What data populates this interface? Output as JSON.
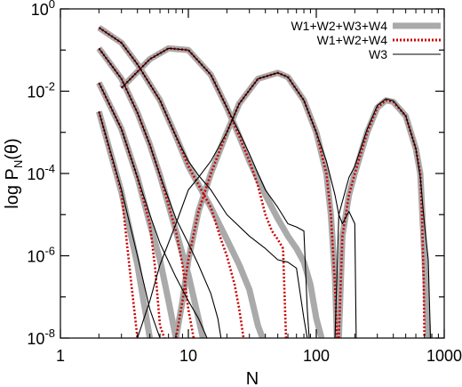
{
  "chart_data": {
    "type": "line",
    "xlabel": "N",
    "ylabel": "log P",
    "ylabel_sub": "N",
    "ylabel_arg": "(θ)",
    "x_scale": "log",
    "y_scale": "log",
    "xlim": [
      1,
      1000
    ],
    "ylim": [
      1e-08,
      1
    ],
    "x_ticks": [
      {
        "value": 1,
        "label": "1"
      },
      {
        "value": 10,
        "label": "10"
      },
      {
        "value": 100,
        "label": "100"
      },
      {
        "value": 1000,
        "label": "1000"
      }
    ],
    "y_ticks": [
      {
        "value": 1,
        "base": "10",
        "exp": "0"
      },
      {
        "value": 0.01,
        "base": "10",
        "exp": "-2"
      },
      {
        "value": 0.0001,
        "base": "10",
        "exp": "-4"
      },
      {
        "value": 1e-06,
        "base": "10",
        "exp": "-6"
      },
      {
        "value": 1e-08,
        "base": "10",
        "exp": "-8"
      }
    ],
    "grid": false,
    "legend_position": "top-right",
    "series": [
      {
        "name": "W1+W2+W3+W4",
        "color": "#aaaaaa",
        "style": "thick-solid",
        "curves": [
          [
            [
              2,
              0.35
            ],
            [
              3,
              0.15
            ],
            [
              4,
              0.045
            ],
            [
              6,
              0.006
            ],
            [
              8,
              0.0008
            ],
            [
              10,
              0.00015
            ],
            [
              15,
              1.5e-05
            ],
            [
              20,
              2.5e-06
            ],
            [
              25,
              6e-07
            ],
            [
              30,
              1.5e-07
            ],
            [
              35,
              2e-08
            ],
            [
              38,
              1e-08
            ]
          ],
          [
            [
              2,
              0.11
            ],
            [
              3,
              0.02
            ],
            [
              4,
              0.003
            ],
            [
              5,
              0.0005
            ],
            [
              6,
              9e-05
            ],
            [
              8,
              4e-06
            ],
            [
              10,
              3.5e-07
            ],
            [
              12,
              3e-08
            ],
            [
              13,
              1e-08
            ]
          ],
          [
            [
              2,
              0.016
            ],
            [
              3,
              0.0012
            ],
            [
              4,
              8e-05
            ],
            [
              5,
              6e-06
            ],
            [
              6,
              8e-07
            ],
            [
              7,
              8e-08
            ],
            [
              8,
              1e-08
            ]
          ],
          [
            [
              2,
              0.0032
            ],
            [
              3,
              3.5e-05
            ],
            [
              4,
              6e-07
            ],
            [
              5,
              1e-08
            ]
          ],
          [
            [
              3,
              0.012
            ],
            [
              5,
              0.06
            ],
            [
              7,
              0.11
            ],
            [
              10,
              0.1
            ],
            [
              15,
              0.025
            ],
            [
              20,
              0.004
            ],
            [
              25,
              0.0008
            ],
            [
              30,
              0.0002
            ],
            [
              40,
              3e-05
            ],
            [
              50,
              8e-06
            ],
            [
              60,
              3e-06
            ],
            [
              70,
              1.5e-06
            ],
            [
              80,
              7e-07
            ],
            [
              90,
              2e-07
            ],
            [
              100,
              3e-08
            ],
            [
              110,
              1e-08
            ]
          ],
          [
            [
              8,
              1e-08
            ],
            [
              9,
              8e-08
            ],
            [
              10,
              8e-07
            ],
            [
              12,
              1.2e-05
            ],
            [
              15,
              0.0001
            ],
            [
              20,
              0.001
            ],
            [
              25,
              0.005
            ],
            [
              35,
              0.02
            ],
            [
              50,
              0.028
            ],
            [
              60,
              0.022
            ],
            [
              80,
              0.006
            ],
            [
              100,
              0.001
            ],
            [
              120,
              0.0001
            ],
            [
              130,
              1e-05
            ],
            [
              140,
              3e-07
            ],
            [
              145,
              1e-08
            ]
          ],
          [
            [
              150,
              1e-08
            ],
            [
              160,
              3e-06
            ],
            [
              180,
              3e-05
            ],
            [
              200,
              0.0001
            ],
            [
              250,
              0.001
            ],
            [
              300,
              0.004
            ],
            [
              350,
              0.006
            ],
            [
              400,
              0.0055
            ],
            [
              500,
              0.0025
            ],
            [
              600,
              0.0004
            ],
            [
              650,
              0.0001
            ],
            [
              700,
              1e-06
            ],
            [
              750,
              1e-08
            ]
          ]
        ]
      },
      {
        "name": "W1+W2+W4",
        "color": "#cc0000",
        "style": "dotted",
        "curves": [
          [
            [
              2,
              0.35
            ],
            [
              3,
              0.15
            ],
            [
              4,
              0.045
            ],
            [
              6,
              0.006
            ],
            [
              8,
              0.0008
            ],
            [
              10,
              0.00015
            ],
            [
              15,
              1.5e-05
            ],
            [
              18,
              2.5e-06
            ],
            [
              20,
              1e-06
            ],
            [
              23,
              2e-07
            ],
            [
              25,
              5e-08
            ],
            [
              27,
              1e-08
            ]
          ],
          [
            [
              2,
              0.11
            ],
            [
              3,
              0.02
            ],
            [
              4,
              0.003
            ],
            [
              5,
              0.0005
            ],
            [
              6,
              9e-05
            ],
            [
              8,
              4e-06
            ],
            [
              9,
              6e-07
            ],
            [
              10,
              5e-08
            ],
            [
              11,
              1e-08
            ]
          ],
          [
            [
              2,
              0.016
            ],
            [
              3,
              0.0012
            ],
            [
              4,
              8e-05
            ],
            [
              5,
              6e-06
            ],
            [
              5.5,
              5e-07
            ],
            [
              6,
              2e-08
            ],
            [
              6.5,
              1e-08
            ]
          ],
          [
            [
              2,
              0.0032
            ],
            [
              3,
              3.5e-05
            ],
            [
              3.5,
              4e-07
            ],
            [
              4,
              1e-08
            ]
          ],
          [
            [
              3,
              0.012
            ],
            [
              5,
              0.06
            ],
            [
              7,
              0.11
            ],
            [
              10,
              0.1
            ],
            [
              15,
              0.025
            ],
            [
              20,
              0.004
            ],
            [
              25,
              0.0008
            ],
            [
              30,
              0.0002
            ],
            [
              35,
              5e-05
            ],
            [
              40,
              1e-05
            ],
            [
              45,
              4e-06
            ],
            [
              50,
              2.5e-06
            ],
            [
              55,
              1.5e-06
            ],
            [
              57,
              5e-08
            ],
            [
              58,
              1e-08
            ]
          ],
          [
            [
              8,
              1e-08
            ],
            [
              9,
              8e-08
            ],
            [
              10,
              8e-07
            ],
            [
              12,
              1.2e-05
            ],
            [
              15,
              0.0001
            ],
            [
              20,
              0.001
            ],
            [
              25,
              0.005
            ],
            [
              35,
              0.02
            ],
            [
              50,
              0.028
            ],
            [
              60,
              0.022
            ],
            [
              80,
              0.006
            ],
            [
              100,
              0.001
            ],
            [
              120,
              0.0001
            ],
            [
              130,
              1e-05
            ],
            [
              140,
              2e-07
            ],
            [
              145,
              1e-08
            ]
          ],
          [
            [
              150,
              1e-08
            ],
            [
              160,
              3e-06
            ],
            [
              180,
              3e-05
            ],
            [
              200,
              0.0001
            ],
            [
              250,
              0.001
            ],
            [
              300,
              0.004
            ],
            [
              350,
              0.006
            ],
            [
              400,
              0.0055
            ],
            [
              500,
              0.0025
            ],
            [
              600,
              0.0004
            ],
            [
              650,
              0.0001
            ],
            [
              670,
              1e-05
            ],
            [
              690,
              3e-07
            ],
            [
              700,
              1e-08
            ]
          ]
        ]
      },
      {
        "name": "W3",
        "color": "#000000",
        "style": "thin-solid",
        "curves": [
          [
            [
              2,
              0.35
            ],
            [
              3,
              0.15
            ],
            [
              4,
              0.045
            ],
            [
              6,
              0.006
            ],
            [
              8,
              0.0008
            ],
            [
              10,
              0.0002
            ],
            [
              12,
              9e-05
            ],
            [
              15,
              4e-05
            ],
            [
              20,
              1e-05
            ],
            [
              30,
              3e-06
            ],
            [
              40,
              1.5e-06
            ],
            [
              50,
              8e-07
            ],
            [
              60,
              7e-07
            ],
            [
              70,
              5e-07
            ],
            [
              80,
              3e-08
            ],
            [
              85,
              1e-08
            ]
          ],
          [
            [
              2,
              0.11
            ],
            [
              3,
              0.02
            ],
            [
              4,
              0.003
            ],
            [
              5,
              0.0005
            ],
            [
              6,
              9e-05
            ],
            [
              8,
              8e-06
            ],
            [
              10,
              2e-06
            ],
            [
              12,
              6e-07
            ],
            [
              15,
              1.2e-07
            ],
            [
              17,
              3e-08
            ],
            [
              18,
              1e-08
            ]
          ],
          [
            [
              2,
              0.016
            ],
            [
              3,
              0.0012
            ],
            [
              4,
              8e-05
            ],
            [
              5,
              1e-05
            ],
            [
              6,
              2e-06
            ],
            [
              8,
              3e-07
            ],
            [
              10,
              8e-08
            ],
            [
              12,
              3e-08
            ],
            [
              14,
              1e-08
            ]
          ],
          [
            [
              2,
              0.0032
            ],
            [
              3,
              4e-05
            ],
            [
              4,
              1e-06
            ],
            [
              5,
              5e-08
            ],
            [
              6,
              1e-08
            ]
          ],
          [
            [
              3,
              0.012
            ],
            [
              5,
              0.06
            ],
            [
              7,
              0.11
            ],
            [
              10,
              0.1
            ],
            [
              15,
              0.025
            ],
            [
              20,
              0.004
            ],
            [
              25,
              0.001
            ],
            [
              30,
              0.0003
            ],
            [
              35,
              0.0001
            ],
            [
              40,
              4e-05
            ],
            [
              50,
              1.5e-05
            ],
            [
              60,
              6e-06
            ],
            [
              70,
              5e-06
            ],
            [
              80,
              4e-06
            ],
            [
              85,
              5e-08
            ],
            [
              88,
              1e-08
            ]
          ],
          [
            [
              4,
              1e-08
            ],
            [
              5,
              8e-08
            ],
            [
              6,
              6e-07
            ],
            [
              8,
              6e-06
            ],
            [
              10,
              4e-05
            ],
            [
              12,
              8e-05
            ],
            [
              15,
              0.0002
            ],
            [
              20,
              0.001
            ],
            [
              25,
              0.005
            ],
            [
              35,
              0.02
            ],
            [
              50,
              0.028
            ],
            [
              60,
              0.022
            ],
            [
              80,
              0.006
            ],
            [
              100,
              0.001
            ],
            [
              120,
              0.0002
            ],
            [
              140,
              3e-05
            ],
            [
              150,
              1e-05
            ],
            [
              160,
              6e-06
            ],
            [
              180,
              1.2e-05
            ],
            [
              200,
              6e-06
            ],
            [
              205,
              1e-08
            ]
          ],
          [
            [
              140,
              1e-08
            ],
            [
              150,
              1e-05
            ],
            [
              180,
              8e-05
            ],
            [
              200,
              0.00015
            ],
            [
              250,
              0.0012
            ],
            [
              300,
              0.0045
            ],
            [
              350,
              0.0065
            ],
            [
              400,
              0.0058
            ],
            [
              500,
              0.0025
            ],
            [
              600,
              0.0004
            ],
            [
              650,
              8e-05
            ],
            [
              700,
              6e-06
            ],
            [
              750,
              8e-07
            ],
            [
              780,
              1e-08
            ]
          ]
        ]
      }
    ]
  }
}
